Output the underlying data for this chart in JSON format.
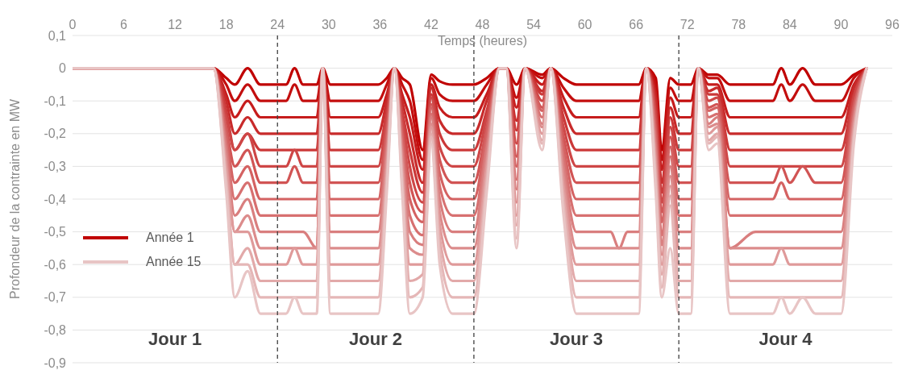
{
  "chart_data": {
    "type": "line",
    "xlabel": "Temps (heures)",
    "ylabel": "Profondeur de la contrainte en MW",
    "xlim": [
      0,
      96
    ],
    "xticks": [
      0,
      6,
      12,
      18,
      24,
      30,
      36,
      42,
      48,
      54,
      60,
      66,
      72,
      78,
      84,
      90,
      96
    ],
    "ylim": [
      -0.9,
      0.1
    ],
    "yticks": [
      {
        "value": 0.1,
        "label": "0,1"
      },
      0,
      {
        "value": -0.1,
        "label": "-0,1"
      },
      {
        "value": -0.2,
        "label": "-0,2"
      },
      {
        "value": -0.3,
        "label": "-0,3"
      },
      {
        "value": -0.4,
        "label": "-0,4"
      },
      {
        "value": -0.5,
        "label": "-0,5"
      },
      {
        "value": -0.6,
        "label": "-0,6"
      },
      {
        "value": -0.7,
        "label": "-0,7"
      },
      {
        "value": -0.8,
        "label": "-0,8"
      },
      {
        "value": -0.9,
        "label": "-0,9"
      }
    ],
    "grid": "y",
    "legend": "left",
    "marker": "none",
    "line_style": "solid",
    "ref_lines": [
      {
        "axis": "x",
        "value": 24,
        "color": "#404040",
        "line_style": "dashed"
      },
      {
        "axis": "x",
        "value": 47,
        "color": "#404040",
        "line_style": "dashed"
      },
      {
        "axis": "x",
        "value": 71,
        "color": "#404040",
        "line_style": "dashed"
      }
    ],
    "annotations": [
      "Jour 1",
      "Jour 2",
      "Jour 3",
      "Jour 4"
    ],
    "x": [
      0,
      16.5,
      18,
      19,
      20.5,
      22,
      25,
      26,
      27,
      28.6,
      29.3,
      30.2,
      31,
      35.8,
      36.8,
      37.7,
      38.6,
      39.5,
      41,
      42,
      43,
      44.5,
      47,
      48.5,
      50,
      50.8,
      52,
      53,
      55,
      56,
      57.5,
      59,
      63,
      64,
      65,
      66.3,
      67.2,
      68.3,
      69,
      70,
      71,
      72.4,
      73.3,
      74.5,
      75.5,
      77,
      80,
      82,
      83,
      84,
      85.5,
      87,
      88,
      90,
      91.5,
      93
    ],
    "series": [
      {
        "name": "Année 1",
        "color": "#c00000",
        "values": [
          0,
          0,
          -0.03,
          -0.05,
          0,
          -0.05,
          -0.05,
          0,
          -0.05,
          -0.05,
          0,
          -0.05,
          -0.05,
          -0.05,
          -0.03,
          0,
          -0.03,
          -0.05,
          -0.25,
          -0.02,
          -0.04,
          -0.05,
          -0.05,
          -0.03,
          0,
          0,
          -0.05,
          0,
          -0.02,
          0,
          -0.03,
          -0.05,
          -0.05,
          -0.05,
          -0.05,
          -0.05,
          0,
          -0.03,
          -0.25,
          -0.03,
          -0.05,
          -0.05,
          0,
          -0.02,
          -0.02,
          -0.05,
          -0.05,
          -0.05,
          0,
          -0.05,
          0,
          -0.05,
          -0.05,
          -0.05,
          -0.02,
          0
        ]
      },
      {
        "color": "#c30e0e",
        "values": [
          0,
          0,
          -0.05,
          -0.1,
          -0.05,
          -0.1,
          -0.1,
          -0.05,
          -0.1,
          -0.1,
          0,
          -0.1,
          -0.1,
          -0.1,
          -0.05,
          0,
          -0.05,
          -0.1,
          -0.28,
          -0.03,
          -0.08,
          -0.1,
          -0.1,
          -0.05,
          0,
          0,
          -0.09,
          0,
          -0.03,
          0,
          -0.06,
          -0.1,
          -0.1,
          -0.1,
          -0.1,
          -0.1,
          0,
          -0.05,
          -0.28,
          -0.06,
          -0.1,
          -0.1,
          0,
          -0.03,
          -0.03,
          -0.1,
          -0.1,
          -0.1,
          -0.05,
          -0.1,
          -0.05,
          -0.1,
          -0.1,
          -0.1,
          -0.03,
          0
        ]
      },
      {
        "color": "#c61c1c",
        "values": [
          0,
          0,
          -0.08,
          -0.15,
          -0.1,
          -0.15,
          -0.15,
          -0.15,
          -0.15,
          -0.15,
          0,
          -0.15,
          -0.15,
          -0.15,
          -0.08,
          0,
          -0.08,
          -0.15,
          -0.31,
          -0.05,
          -0.12,
          -0.15,
          -0.15,
          -0.08,
          0,
          0,
          -0.12,
          0,
          -0.05,
          0,
          -0.09,
          -0.15,
          -0.15,
          -0.15,
          -0.15,
          -0.15,
          0,
          -0.08,
          -0.31,
          -0.09,
          -0.15,
          -0.15,
          0,
          -0.05,
          -0.05,
          -0.15,
          -0.15,
          -0.15,
          -0.15,
          -0.15,
          -0.15,
          -0.15,
          -0.15,
          -0.15,
          -0.05,
          0
        ]
      },
      {
        "color": "#c82a2a",
        "values": [
          0,
          0,
          -0.1,
          -0.2,
          -0.15,
          -0.2,
          -0.2,
          -0.2,
          -0.2,
          -0.2,
          0,
          -0.2,
          -0.2,
          -0.2,
          -0.1,
          0,
          -0.1,
          -0.2,
          -0.35,
          -0.06,
          -0.16,
          -0.2,
          -0.2,
          -0.1,
          0,
          0,
          -0.16,
          0,
          -0.07,
          0,
          -0.12,
          -0.2,
          -0.2,
          -0.2,
          -0.2,
          -0.2,
          0,
          -0.1,
          -0.35,
          -0.12,
          -0.2,
          -0.2,
          0,
          -0.07,
          -0.06,
          -0.2,
          -0.2,
          -0.2,
          -0.2,
          -0.2,
          -0.2,
          -0.2,
          -0.2,
          -0.2,
          -0.06,
          0
        ]
      },
      {
        "color": "#cb3838",
        "values": [
          0,
          0,
          -0.13,
          -0.25,
          -0.2,
          -0.25,
          -0.25,
          -0.25,
          -0.25,
          -0.25,
          0,
          -0.25,
          -0.25,
          -0.25,
          -0.13,
          0,
          -0.13,
          -0.25,
          -0.38,
          -0.08,
          -0.2,
          -0.25,
          -0.25,
          -0.13,
          0,
          0,
          -0.19,
          0,
          -0.08,
          0,
          -0.15,
          -0.25,
          -0.25,
          -0.25,
          -0.25,
          -0.25,
          0,
          -0.13,
          -0.38,
          -0.15,
          -0.25,
          -0.25,
          0,
          -0.08,
          -0.08,
          -0.25,
          -0.25,
          -0.25,
          -0.25,
          -0.25,
          -0.25,
          -0.25,
          -0.25,
          -0.25,
          -0.08,
          0
        ]
      },
      {
        "color": "#ce4646",
        "values": [
          0,
          0,
          -0.15,
          -0.25,
          -0.2,
          -0.3,
          -0.3,
          -0.25,
          -0.3,
          -0.3,
          0,
          -0.3,
          -0.3,
          -0.3,
          -0.15,
          0,
          -0.15,
          -0.3,
          -0.41,
          -0.09,
          -0.24,
          -0.3,
          -0.3,
          -0.15,
          0,
          0,
          -0.23,
          0,
          -0.1,
          0,
          -0.18,
          -0.3,
          -0.3,
          -0.3,
          -0.3,
          -0.3,
          0,
          -0.15,
          -0.41,
          -0.18,
          -0.3,
          -0.3,
          0,
          -0.1,
          -0.09,
          -0.3,
          -0.3,
          -0.3,
          -0.3,
          -0.3,
          -0.3,
          -0.3,
          -0.3,
          -0.3,
          -0.09,
          0
        ]
      },
      {
        "color": "#d15454",
        "values": [
          0,
          0,
          -0.18,
          -0.3,
          -0.25,
          -0.35,
          -0.35,
          -0.3,
          -0.35,
          -0.35,
          0,
          -0.35,
          -0.35,
          -0.35,
          -0.18,
          0,
          -0.18,
          -0.35,
          -0.44,
          -0.11,
          -0.28,
          -0.35,
          -0.35,
          -0.18,
          0,
          0,
          -0.27,
          0,
          -0.12,
          0,
          -0.21,
          -0.35,
          -0.35,
          -0.35,
          -0.35,
          -0.35,
          0,
          -0.18,
          -0.44,
          -0.21,
          -0.35,
          -0.35,
          0,
          -0.12,
          -0.11,
          -0.35,
          -0.35,
          -0.35,
          -0.3,
          -0.35,
          -0.3,
          -0.35,
          -0.35,
          -0.35,
          -0.11,
          0
        ]
      },
      {
        "color": "#d46262",
        "values": [
          0,
          0,
          -0.2,
          -0.35,
          -0.3,
          -0.4,
          -0.4,
          -0.4,
          -0.4,
          -0.4,
          0,
          -0.4,
          -0.4,
          -0.4,
          -0.2,
          0,
          -0.2,
          -0.4,
          -0.47,
          -0.12,
          -0.32,
          -0.4,
          -0.4,
          -0.2,
          0,
          0,
          -0.3,
          0,
          -0.13,
          0,
          -0.24,
          -0.4,
          -0.4,
          -0.4,
          -0.4,
          -0.4,
          0,
          -0.2,
          -0.47,
          -0.24,
          -0.4,
          -0.4,
          0,
          -0.13,
          -0.12,
          -0.4,
          -0.4,
          -0.4,
          -0.35,
          -0.4,
          -0.4,
          -0.4,
          -0.4,
          -0.4,
          -0.12,
          0
        ]
      },
      {
        "color": "#d77070",
        "values": [
          0,
          0,
          -0.23,
          -0.4,
          -0.35,
          -0.45,
          -0.45,
          -0.45,
          -0.45,
          -0.45,
          0,
          -0.45,
          -0.45,
          -0.45,
          -0.23,
          0,
          -0.23,
          -0.45,
          -0.51,
          -0.14,
          -0.36,
          -0.45,
          -0.45,
          -0.23,
          0,
          0,
          -0.34,
          0,
          -0.15,
          0,
          -0.27,
          -0.45,
          -0.45,
          -0.45,
          -0.45,
          -0.45,
          0,
          -0.23,
          -0.51,
          -0.27,
          -0.45,
          -0.45,
          0,
          -0.15,
          -0.14,
          -0.45,
          -0.45,
          -0.45,
          -0.45,
          -0.45,
          -0.45,
          -0.45,
          -0.45,
          -0.45,
          -0.14,
          0
        ]
      },
      {
        "color": "#d97e7e",
        "values": [
          0,
          0,
          -0.25,
          -0.45,
          -0.4,
          -0.5,
          -0.5,
          -0.5,
          -0.5,
          -0.55,
          0,
          -0.5,
          -0.5,
          -0.5,
          -0.25,
          0,
          -0.25,
          -0.5,
          -0.54,
          -0.15,
          -0.4,
          -0.5,
          -0.5,
          -0.25,
          0,
          0,
          -0.37,
          0,
          -0.17,
          0,
          -0.3,
          -0.5,
          -0.5,
          -0.55,
          -0.5,
          -0.5,
          0,
          -0.25,
          -0.54,
          -0.3,
          -0.5,
          -0.5,
          0,
          -0.17,
          -0.15,
          -0.55,
          -0.5,
          -0.5,
          -0.5,
          -0.5,
          -0.5,
          -0.5,
          -0.5,
          -0.5,
          -0.15,
          0
        ]
      },
      {
        "color": "#dc8c8c",
        "values": [
          0,
          0,
          -0.28,
          -0.5,
          -0.45,
          -0.55,
          -0.55,
          -0.55,
          -0.55,
          -0.55,
          0,
          -0.55,
          -0.55,
          -0.55,
          -0.28,
          0,
          -0.28,
          -0.55,
          -0.57,
          -0.17,
          -0.44,
          -0.55,
          -0.55,
          -0.28,
          0,
          0,
          -0.41,
          0,
          -0.18,
          0,
          -0.33,
          -0.55,
          -0.55,
          -0.55,
          -0.55,
          -0.55,
          0,
          -0.28,
          -0.57,
          -0.33,
          -0.55,
          -0.55,
          0,
          -0.18,
          -0.17,
          -0.55,
          -0.55,
          -0.55,
          -0.55,
          -0.55,
          -0.55,
          -0.55,
          -0.55,
          -0.55,
          -0.17,
          0
        ]
      },
      {
        "color": "#df9a9a",
        "values": [
          0,
          0,
          -0.3,
          -0.5,
          -0.5,
          -0.6,
          -0.6,
          -0.55,
          -0.6,
          -0.6,
          0,
          -0.6,
          -0.6,
          -0.6,
          -0.3,
          0,
          -0.3,
          -0.6,
          -0.6,
          -0.18,
          -0.48,
          -0.6,
          -0.6,
          -0.3,
          0,
          0,
          -0.45,
          0,
          -0.2,
          0,
          -0.36,
          -0.6,
          -0.6,
          -0.6,
          -0.6,
          -0.6,
          0,
          -0.3,
          -0.6,
          -0.36,
          -0.6,
          -0.6,
          0,
          -0.2,
          -0.18,
          -0.6,
          -0.6,
          -0.6,
          -0.55,
          -0.6,
          -0.6,
          -0.6,
          -0.6,
          -0.6,
          -0.18,
          0
        ]
      },
      {
        "color": "#e2a9a9",
        "values": [
          0,
          0,
          -0.33,
          -0.6,
          -0.55,
          -0.65,
          -0.65,
          -0.65,
          -0.65,
          -0.65,
          0,
          -0.65,
          -0.65,
          -0.65,
          -0.33,
          0,
          -0.33,
          -0.65,
          -0.63,
          -0.2,
          -0.52,
          -0.65,
          -0.65,
          -0.33,
          0,
          0,
          -0.48,
          0,
          -0.22,
          0,
          -0.39,
          -0.65,
          -0.65,
          -0.65,
          -0.65,
          -0.65,
          0,
          -0.33,
          -0.63,
          -0.39,
          -0.65,
          -0.65,
          0,
          -0.22,
          -0.2,
          -0.65,
          -0.65,
          -0.65,
          -0.65,
          -0.65,
          -0.65,
          -0.65,
          -0.65,
          -0.65,
          -0.2,
          0
        ]
      },
      {
        "color": "#e5b7b7",
        "values": [
          0,
          0,
          -0.35,
          -0.6,
          -0.6,
          -0.7,
          -0.7,
          -0.7,
          -0.7,
          -0.7,
          0,
          -0.7,
          -0.7,
          -0.7,
          -0.35,
          0,
          -0.35,
          -0.7,
          -0.67,
          -0.21,
          -0.56,
          -0.7,
          -0.7,
          -0.35,
          0,
          0,
          -0.52,
          0,
          -0.23,
          0,
          -0.42,
          -0.7,
          -0.7,
          -0.7,
          -0.7,
          -0.7,
          0,
          -0.35,
          -0.67,
          -0.42,
          -0.7,
          -0.7,
          0,
          -0.23,
          -0.21,
          -0.7,
          -0.7,
          -0.7,
          -0.7,
          -0.7,
          -0.7,
          -0.7,
          -0.7,
          -0.7,
          -0.21,
          0
        ]
      },
      {
        "name": "Année 15",
        "color": "#e8c5c5",
        "values": [
          0,
          0,
          -0.38,
          -0.7,
          -0.62,
          -0.75,
          -0.75,
          -0.7,
          -0.75,
          -0.75,
          0,
          -0.75,
          -0.75,
          -0.75,
          -0.38,
          0,
          -0.38,
          -0.75,
          -0.7,
          -0.23,
          -0.6,
          -0.75,
          -0.75,
          -0.38,
          0,
          0,
          -0.55,
          0,
          -0.25,
          0,
          -0.45,
          -0.75,
          -0.75,
          -0.75,
          -0.75,
          -0.75,
          0,
          -0.38,
          -0.7,
          -0.55,
          -0.75,
          -0.75,
          0,
          -0.25,
          -0.23,
          -0.75,
          -0.75,
          -0.75,
          -0.7,
          -0.75,
          -0.7,
          -0.75,
          -0.75,
          -0.75,
          -0.23,
          0
        ]
      }
    ]
  }
}
